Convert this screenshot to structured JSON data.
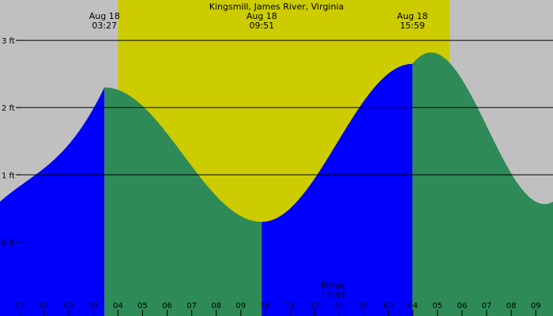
{
  "chart_data": {
    "type": "area",
    "title": "Kingsmill, James River, Virginia",
    "xlabel": "",
    "ylabel": "",
    "colors": {
      "background": "#c0c0c0",
      "daylight": "#cccc00",
      "rising": "#0000ff",
      "falling": "#2e8b57",
      "gridline": "#000000"
    },
    "daylight_window": {
      "start_hour": -2.0,
      "end_hour": 11.5
    },
    "x_range_hours": [
      -6.8,
      15.7
    ],
    "ylim": [
      -1.1,
      3.6
    ],
    "yticks": [
      {
        "value": 0,
        "label": "0 ft"
      },
      {
        "value": 1,
        "label": "1 ft"
      },
      {
        "value": 2,
        "label": "2 ft"
      },
      {
        "value": 3,
        "label": "3 ft"
      }
    ],
    "xticks": [
      {
        "hour": -7,
        "label": "11"
      },
      {
        "hour": -6,
        "label": "12"
      },
      {
        "hour": -5,
        "label": "01"
      },
      {
        "hour": -4,
        "label": "02"
      },
      {
        "hour": -3,
        "label": "03"
      },
      {
        "hour": -2,
        "label": "04"
      },
      {
        "hour": -1,
        "label": "05"
      },
      {
        "hour": 0,
        "label": "06"
      },
      {
        "hour": 1,
        "label": "07"
      },
      {
        "hour": 2,
        "label": "08"
      },
      {
        "hour": 3,
        "label": "09"
      },
      {
        "hour": 4,
        "label": "10"
      },
      {
        "hour": 5,
        "label": "11"
      },
      {
        "hour": 6,
        "label": "12"
      },
      {
        "hour": 7,
        "label": "01"
      },
      {
        "hour": 8,
        "label": "02"
      },
      {
        "hour": 9,
        "label": "03"
      },
      {
        "hour": 10,
        "label": "04"
      },
      {
        "hour": 11,
        "label": "05"
      },
      {
        "hour": 12,
        "label": "06"
      },
      {
        "hour": 13,
        "label": "07"
      },
      {
        "hour": 14,
        "label": "08"
      },
      {
        "hour": 15,
        "label": "09"
      }
    ],
    "extremes": [
      {
        "hour": -2.55,
        "height": 2.3,
        "type": "high",
        "date": "Aug 18",
        "time": "03:27"
      },
      {
        "hour": 3.85,
        "height": 0.3,
        "type": "low",
        "date": "Aug 18",
        "time": "09:51"
      },
      {
        "hour": 9.98,
        "height": 2.65,
        "type": "high",
        "date": "Aug 18",
        "time": "15:59"
      }
    ],
    "edge_heights": {
      "left": 0.6,
      "right": 0.6
    },
    "annotations": [
      {
        "text": "Mrise",
        "hour": 6.75,
        "line": 1
      },
      {
        "text": "12:44",
        "hour": 6.75,
        "line": 2
      }
    ]
  }
}
